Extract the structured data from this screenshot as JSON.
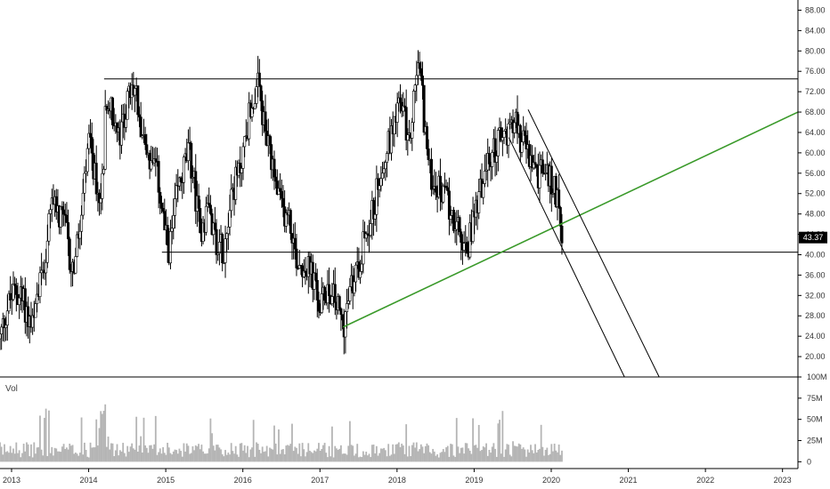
{
  "chart_data": {
    "type": "candlestick",
    "grid": false,
    "price_axis": {
      "ylim": [
        16,
        90
      ],
      "ticks": [
        "88.00",
        "84.00",
        "80.00",
        "76.00",
        "72.00",
        "68.00",
        "64.00",
        "60.00",
        "56.00",
        "52.00",
        "48.00",
        "44.00",
        "40.00",
        "36.00",
        "32.00",
        "28.00",
        "24.00",
        "20.00"
      ],
      "tick_values": [
        88,
        84,
        80,
        76,
        72,
        68,
        64,
        60,
        56,
        52,
        48,
        44,
        40,
        36,
        32,
        28,
        24,
        20
      ]
    },
    "volume_axis": {
      "label": "Vol",
      "ylim": [
        -8,
        100
      ],
      "ticks": [
        "100M",
        "75M",
        "50M",
        "25M",
        "0"
      ],
      "tick_values": [
        100,
        75,
        50,
        25,
        0
      ]
    },
    "time_axis": {
      "ticks": [
        "2013",
        "2014",
        "2015",
        "2016",
        "2017",
        "2018",
        "2019",
        "2020",
        "2021",
        "2022",
        "2023"
      ],
      "tick_values": [
        2013,
        2014,
        2015,
        2016,
        2017,
        2018,
        2019,
        2020,
        2021,
        2022,
        2023
      ],
      "xlim": [
        2012.85,
        2023.2
      ]
    },
    "last_price": {
      "label": "43.37",
      "value": 43.37,
      "color": "#000000"
    },
    "price_path": [
      [
        2012.85,
        23.5
      ],
      [
        2012.95,
        30
      ],
      [
        2013.05,
        33
      ],
      [
        2013.15,
        31
      ],
      [
        2013.25,
        26
      ],
      [
        2013.3,
        26.5
      ],
      [
        2013.35,
        34
      ],
      [
        2013.45,
        41
      ],
      [
        2013.55,
        53
      ],
      [
        2013.6,
        47
      ],
      [
        2013.7,
        46
      ],
      [
        2013.75,
        39
      ],
      [
        2013.8,
        37
      ],
      [
        2013.9,
        46
      ],
      [
        2014.0,
        62
      ],
      [
        2014.05,
        58
      ],
      [
        2014.1,
        54
      ],
      [
        2014.15,
        50
      ],
      [
        2014.2,
        60
      ],
      [
        2014.22,
        72
      ],
      [
        2014.3,
        68
      ],
      [
        2014.4,
        62
      ],
      [
        2014.5,
        70
      ],
      [
        2014.6,
        73
      ],
      [
        2014.7,
        64
      ],
      [
        2014.8,
        58
      ],
      [
        2014.9,
        55
      ],
      [
        2015.0,
        43
      ],
      [
        2015.05,
        41
      ],
      [
        2015.15,
        52
      ],
      [
        2015.25,
        58
      ],
      [
        2015.3,
        60
      ],
      [
        2015.35,
        56
      ],
      [
        2015.45,
        44
      ],
      [
        2015.55,
        50
      ],
      [
        2015.65,
        43
      ],
      [
        2015.75,
        41
      ],
      [
        2015.85,
        52
      ],
      [
        2015.95,
        56
      ],
      [
        2016.0,
        60
      ],
      [
        2016.1,
        69
      ],
      [
        2016.2,
        73
      ],
      [
        2016.3,
        63
      ],
      [
        2016.4,
        55
      ],
      [
        2016.5,
        49
      ],
      [
        2016.6,
        47
      ],
      [
        2016.7,
        39
      ],
      [
        2016.8,
        38
      ],
      [
        2016.9,
        36
      ],
      [
        2017.0,
        29
      ],
      [
        2017.1,
        34
      ],
      [
        2017.2,
        31
      ],
      [
        2017.3,
        26
      ],
      [
        2017.4,
        33
      ],
      [
        2017.5,
        38
      ],
      [
        2017.6,
        45
      ],
      [
        2017.7,
        49
      ],
      [
        2017.8,
        58
      ],
      [
        2017.9,
        62
      ],
      [
        2018.0,
        70
      ],
      [
        2018.1,
        67
      ],
      [
        2018.15,
        60
      ],
      [
        2018.25,
        76
      ],
      [
        2018.3,
        77
      ],
      [
        2018.35,
        67
      ],
      [
        2018.42,
        56
      ],
      [
        2018.5,
        54
      ],
      [
        2018.6,
        52
      ],
      [
        2018.7,
        49
      ],
      [
        2018.8,
        44
      ],
      [
        2018.9,
        40
      ],
      [
        2019.0,
        48
      ],
      [
        2019.1,
        54
      ],
      [
        2019.2,
        58
      ],
      [
        2019.3,
        62
      ],
      [
        2019.4,
        63
      ],
      [
        2019.5,
        67
      ],
      [
        2019.6,
        63
      ],
      [
        2019.7,
        60
      ],
      [
        2019.8,
        55
      ],
      [
        2019.9,
        57
      ],
      [
        2020.0,
        54
      ],
      [
        2020.1,
        51
      ],
      [
        2020.15,
        43.37
      ]
    ],
    "annotations": [
      {
        "kind": "line",
        "color": "#000000",
        "from": [
          2014.2,
          74.5
        ],
        "to": [
          2023.2,
          74.5
        ]
      },
      {
        "kind": "line",
        "color": "#000000",
        "from": [
          2014.95,
          40.5
        ],
        "to": [
          2023.2,
          40.5
        ]
      },
      {
        "kind": "line",
        "color": "#3a9a2a",
        "from": [
          2017.3,
          25.8
        ],
        "to": [
          2023.2,
          68
        ]
      },
      {
        "kind": "line",
        "color": "#000000",
        "from": [
          2019.7,
          68.5
        ],
        "to": [
          2021.4,
          16
        ]
      },
      {
        "kind": "line",
        "color": "#000000",
        "from": [
          2019.45,
          63
        ],
        "to": [
          2020.95,
          16
        ]
      }
    ]
  }
}
